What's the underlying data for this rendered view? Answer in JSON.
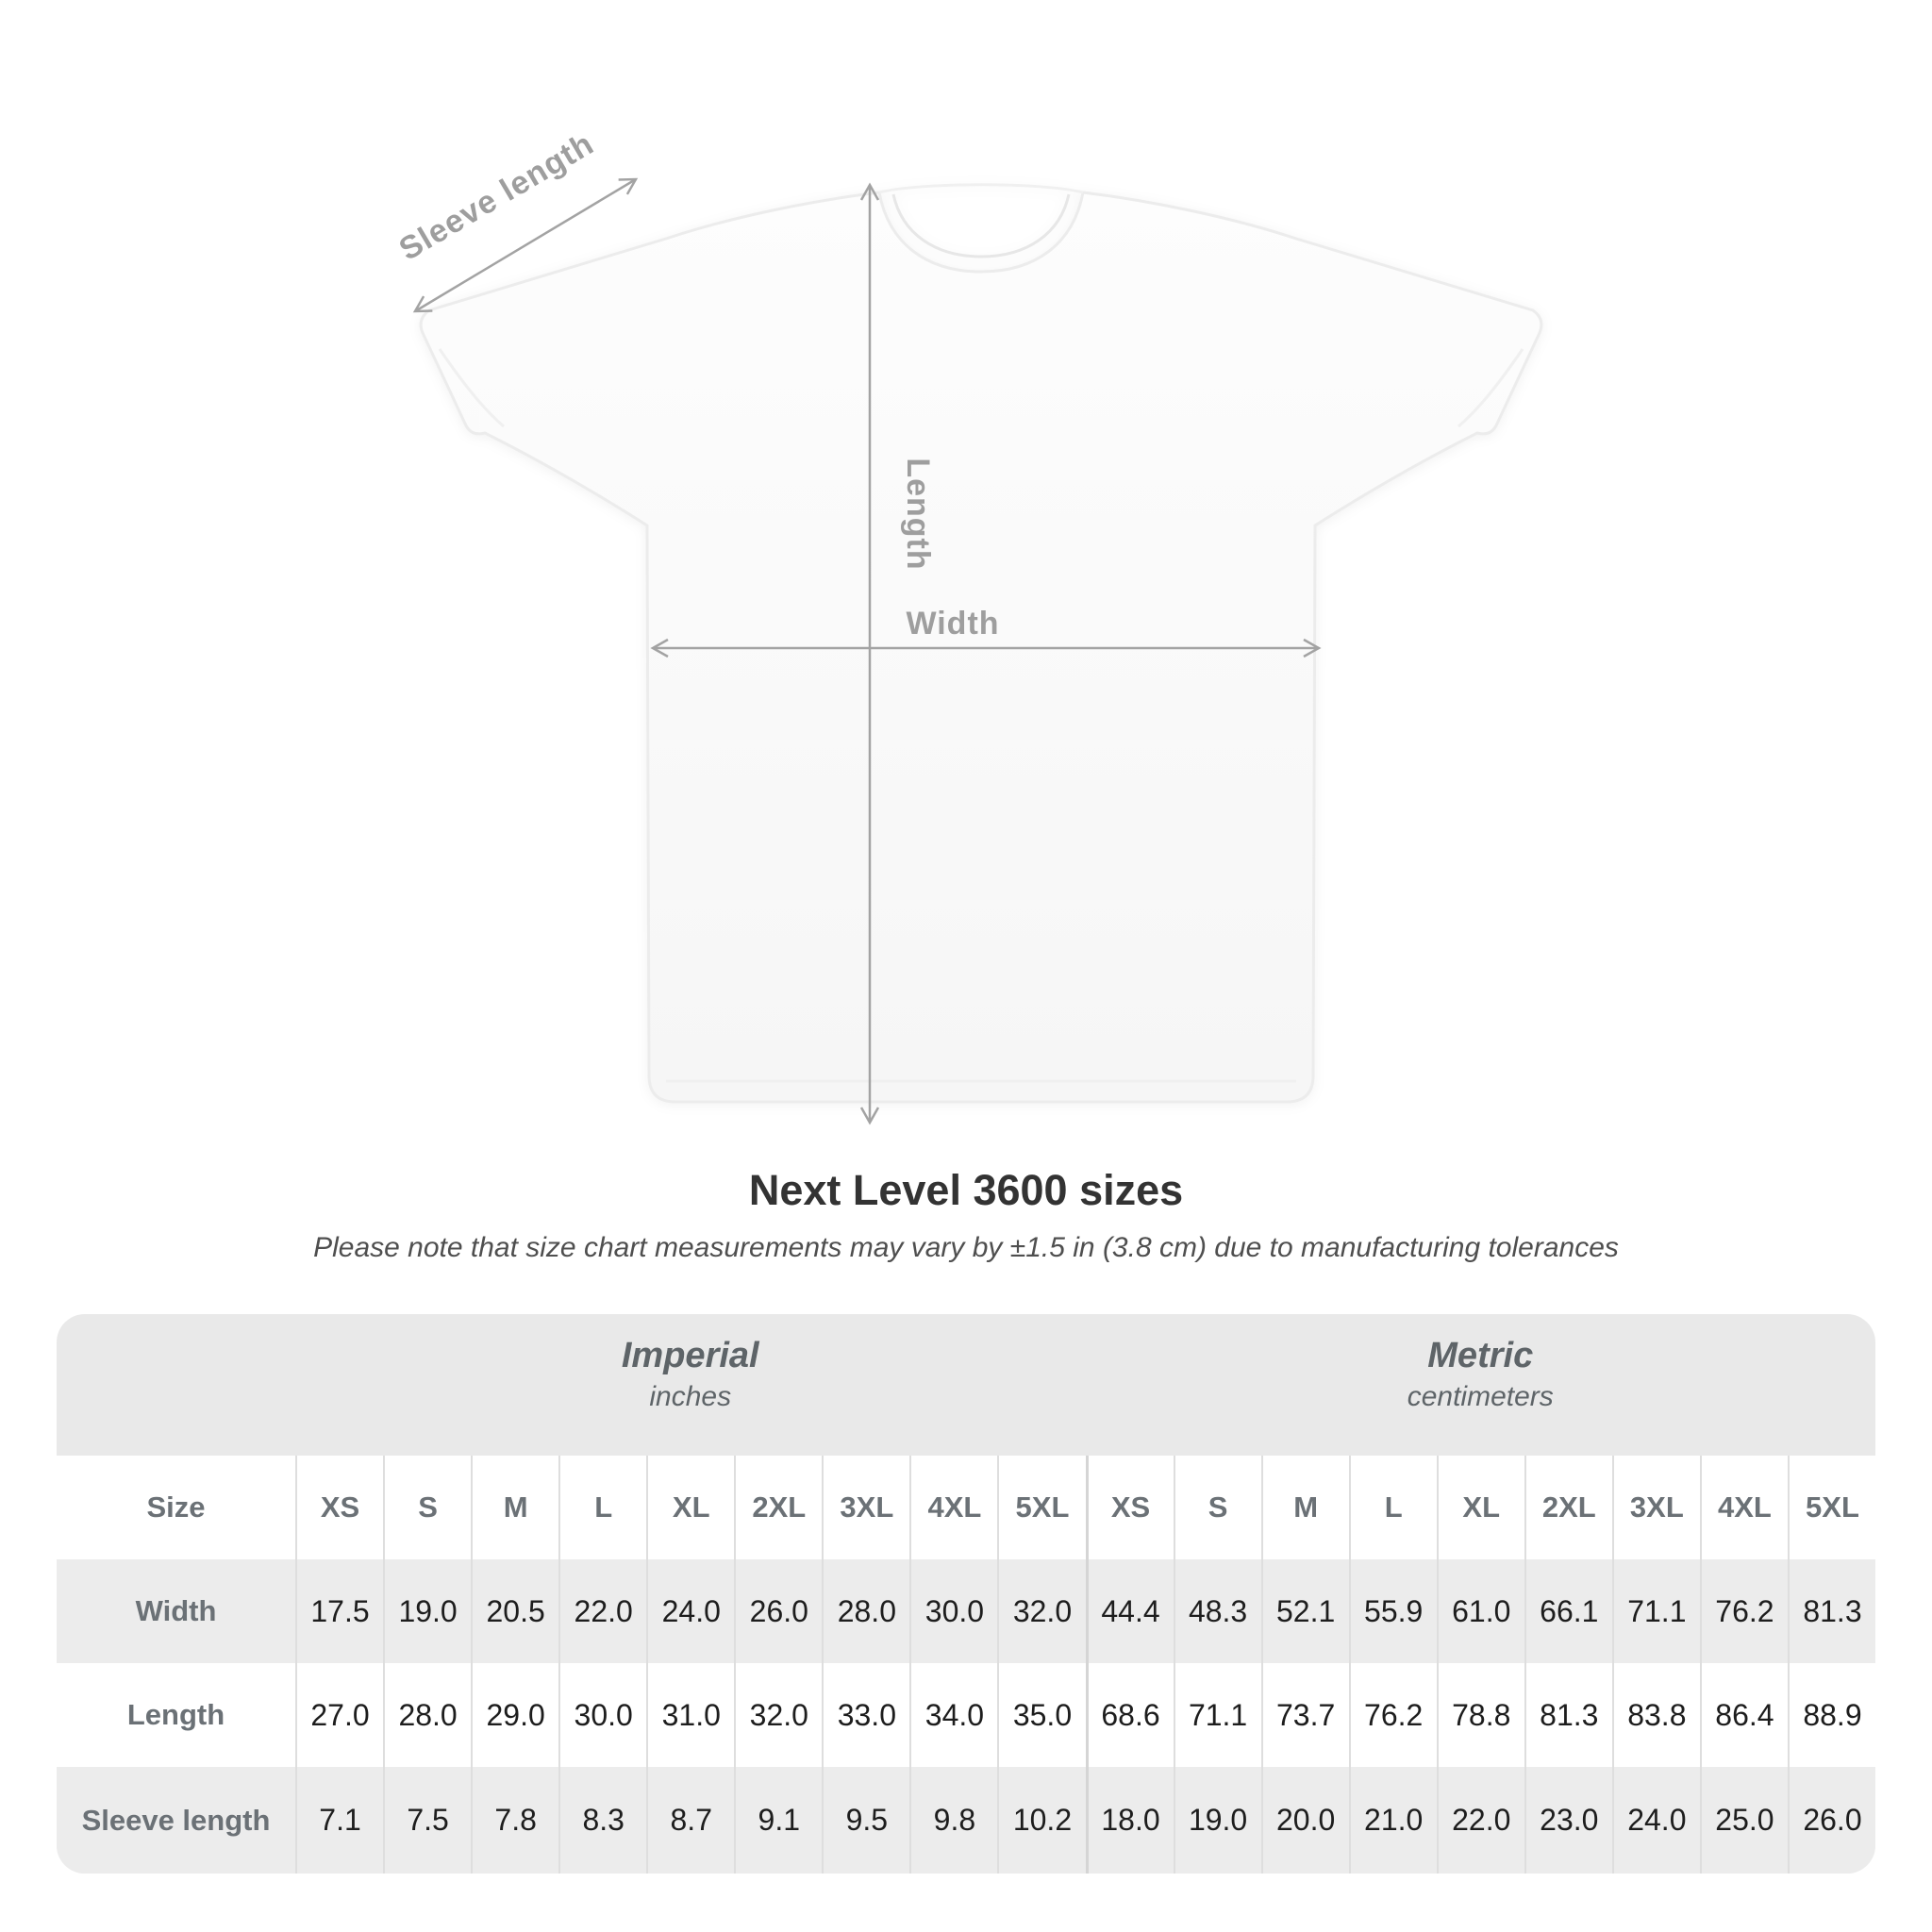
{
  "diagram": {
    "sleeve_label": "Sleeve length",
    "length_label": "Length",
    "width_label": "Width",
    "annotation_color": "#9e9e9e",
    "shirt_color": "#fbfbfb"
  },
  "title": "Next Level 3600 sizes",
  "subtitle": "Please note that size chart measurements may vary by ±1.5 in (3.8 cm) due to manufacturing tolerances",
  "table": {
    "groups": [
      {
        "label": "Imperial",
        "sublabel": "inches"
      },
      {
        "label": "Metric",
        "sublabel": "centimeters"
      }
    ],
    "size_header_label": "Size",
    "sizes": [
      "XS",
      "S",
      "M",
      "L",
      "XL",
      "2XL",
      "3XL",
      "4XL",
      "5XL"
    ],
    "rows": [
      {
        "label": "Width",
        "imperial": [
          "17.5",
          "19.0",
          "20.5",
          "22.0",
          "24.0",
          "26.0",
          "28.0",
          "30.0",
          "32.0"
        ],
        "metric": [
          "44.4",
          "48.3",
          "52.1",
          "55.9",
          "61.0",
          "66.1",
          "71.1",
          "76.2",
          "81.3"
        ]
      },
      {
        "label": "Length",
        "imperial": [
          "27.0",
          "28.0",
          "29.0",
          "30.0",
          "31.0",
          "32.0",
          "33.0",
          "34.0",
          "35.0"
        ],
        "metric": [
          "68.6",
          "71.1",
          "73.7",
          "76.2",
          "78.8",
          "81.3",
          "83.8",
          "86.4",
          "88.9"
        ]
      },
      {
        "label": "Sleeve length",
        "imperial": [
          "7.1",
          "7.5",
          "7.8",
          "8.3",
          "8.7",
          "9.1",
          "9.5",
          "9.8",
          "10.2"
        ],
        "metric": [
          "18.0",
          "19.0",
          "20.0",
          "21.0",
          "22.0",
          "23.0",
          "24.0",
          "25.0",
          "26.0"
        ]
      }
    ],
    "colors": {
      "band": "#e9e9e9",
      "stripe": "#ececec",
      "divider": "#dedede",
      "header_text": "#6b7176",
      "value_text": "#1d1d1d"
    }
  }
}
